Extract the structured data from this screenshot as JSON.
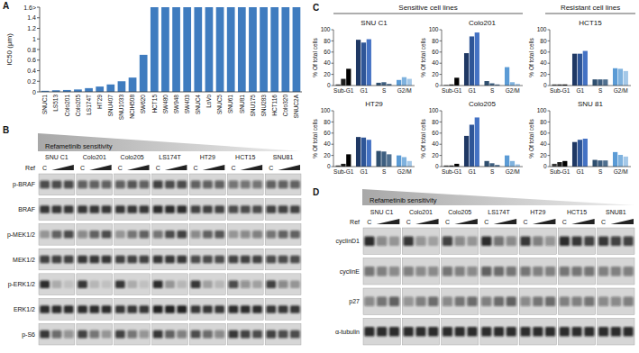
{
  "chart_data": [
    {
      "type": "bar",
      "panel": "A",
      "ylabel": "IC50 (μm)",
      "color": "#3f7cbf",
      "grid": false,
      "categories": [
        "SNUC1",
        "LS513",
        "Colo201",
        "Colo205",
        "LS174T",
        "HT29",
        "SNU407",
        "SNU1033",
        "NCIH508",
        "SW620",
        "HCT15",
        "SW480",
        "SW948",
        "SW403",
        "SNUC4",
        "LoVo",
        "SNUC5",
        "SNU61",
        "SNU81",
        "SNU175",
        "SNU283",
        "HCT116",
        "Colo320",
        "SNUC2A"
      ],
      "values": [
        0.02,
        0.03,
        0.035,
        0.045,
        0.07,
        0.1,
        0.14,
        0.2,
        0.27,
        0.7,
        1.6,
        1.6,
        1.6,
        1.6,
        1.6,
        1.6,
        1.6,
        1.6,
        1.6,
        1.6,
        1.6,
        1.6,
        1.6,
        1.6
      ],
      "ylim": [
        0,
        1.6
      ],
      "yticks": [
        0,
        0.2,
        0.4,
        0.6,
        0.8,
        1,
        1.2,
        1.4,
        {
          "value": 1.6,
          "label": "1.6>"
        }
      ]
    },
    {
      "type": "bar",
      "panel": "C",
      "title": "SNU C1",
      "ylabel": "% Of total cells",
      "categories": [
        "Sub-G1",
        "G1",
        "S",
        "G2/M"
      ],
      "ylim": [
        0,
        100
      ],
      "yticks": [
        0,
        20,
        40,
        60,
        80,
        100
      ],
      "grid": false,
      "series": [
        {
          "colors": [
            "#3a3a3a",
            "#1f3864",
            "#2f4f6f",
            "#5b9bd5"
          ],
          "values": [
            2,
            82,
            5,
            10
          ]
        },
        {
          "colors": [
            "#1e1e1e",
            "#2e5597",
            "#3e5f80",
            "#7fb2de"
          ],
          "values": [
            12,
            77,
            6,
            15
          ]
        },
        {
          "colors": [
            "#000000",
            "#4472c4",
            "#4f6f8f",
            "#a4c8e8"
          ],
          "values": [
            30,
            83,
            3,
            12
          ]
        }
      ]
    },
    {
      "type": "bar",
      "panel": "C",
      "title": "Colo201",
      "ylabel": "% Of total cells",
      "categories": [
        "Sub-G1",
        "G1",
        "S",
        "G2/M"
      ],
      "ylim": [
        0,
        100
      ],
      "yticks": [
        0,
        20,
        40,
        60,
        80,
        100
      ],
      "grid": false,
      "series": [
        {
          "colors": [
            "#3a3a3a",
            "#1f3864",
            "#2f4f6f",
            "#5b9bd5"
          ],
          "values": [
            1,
            58,
            8,
            33
          ]
        },
        {
          "colors": [
            "#1e1e1e",
            "#2e5597",
            "#3e5f80",
            "#7fb2de"
          ],
          "values": [
            2,
            88,
            4,
            6
          ]
        },
        {
          "colors": [
            "#000000",
            "#4472c4",
            "#4f6f8f",
            "#a4c8e8"
          ],
          "values": [
            14,
            95,
            2,
            3
          ]
        }
      ]
    },
    {
      "type": "bar",
      "panel": "C",
      "title": "HCT15",
      "ylabel": "% Of total cells",
      "categories": [
        "Sub-G1",
        "G1",
        "S",
        "G2/M"
      ],
      "ylim": [
        0,
        100
      ],
      "yticks": [
        0,
        20,
        40,
        60,
        80,
        100
      ],
      "grid": false,
      "series": [
        {
          "colors": [
            "#3a3a3a",
            "#1f3864",
            "#2f4f6f",
            "#5b9bd5"
          ],
          "values": [
            2,
            57,
            11,
            31
          ]
        },
        {
          "colors": [
            "#1e1e1e",
            "#2e5597",
            "#3e5f80",
            "#7fb2de"
          ],
          "values": [
            2,
            57,
            11,
            30
          ]
        },
        {
          "colors": [
            "#000000",
            "#4472c4",
            "#4f6f8f",
            "#a4c8e8"
          ],
          "values": [
            2,
            62,
            11,
            26
          ]
        }
      ]
    },
    {
      "type": "bar",
      "panel": "C",
      "title": "HT29",
      "ylabel": "% Of total cells",
      "categories": [
        "Sub-G1",
        "G1",
        "S",
        "G2/M"
      ],
      "ylim": [
        0,
        100
      ],
      "yticks": [
        0,
        20,
        40,
        60,
        80,
        100
      ],
      "grid": false,
      "series": [
        {
          "colors": [
            "#3a3a3a",
            "#1f3864",
            "#2f4f6f",
            "#5b9bd5"
          ],
          "values": [
            2,
            53,
            28,
            20
          ]
        },
        {
          "colors": [
            "#1e1e1e",
            "#2e5597",
            "#3e5f80",
            "#7fb2de"
          ],
          "values": [
            5,
            52,
            27,
            17
          ]
        },
        {
          "colors": [
            "#000000",
            "#4472c4",
            "#4f6f8f",
            "#a4c8e8"
          ],
          "values": [
            22,
            48,
            22,
            10
          ]
        }
      ]
    },
    {
      "type": "bar",
      "panel": "C",
      "title": "Colo205",
      "ylabel": "% Of total cells",
      "categories": [
        "Sub-G1",
        "G1",
        "S",
        "G2/M"
      ],
      "ylim": [
        0,
        100
      ],
      "yticks": [
        0,
        20,
        40,
        60,
        80,
        100
      ],
      "grid": false,
      "series": [
        {
          "colors": [
            "#3a3a3a",
            "#1f3864",
            "#2f4f6f",
            "#5b9bd5"
          ],
          "values": [
            2,
            55,
            10,
            20
          ]
        },
        {
          "colors": [
            "#1e1e1e",
            "#2e5597",
            "#3e5f80",
            "#7fb2de"
          ],
          "values": [
            2,
            75,
            6,
            10
          ]
        },
        {
          "colors": [
            "#000000",
            "#4472c4",
            "#4f6f8f",
            "#a4c8e8"
          ],
          "values": [
            5,
            88,
            3,
            4
          ]
        }
      ]
    },
    {
      "type": "bar",
      "panel": "C",
      "title": "SNU 81",
      "ylabel": "% Of total cells",
      "categories": [
        "Sub-G1",
        "G1",
        "S",
        "G2/M"
      ],
      "ylim": [
        0,
        100
      ],
      "yticks": [
        0,
        20,
        40,
        60,
        80,
        100
      ],
      "grid": false,
      "series": [
        {
          "colors": [
            "#3a3a3a",
            "#1f3864",
            "#2f4f6f",
            "#5b9bd5"
          ],
          "values": [
            5,
            44,
            12,
            26
          ]
        },
        {
          "colors": [
            "#1e1e1e",
            "#2e5597",
            "#3e5f80",
            "#7fb2de"
          ],
          "values": [
            8,
            48,
            11,
            21
          ]
        },
        {
          "colors": [
            "#000000",
            "#4472c4",
            "#4f6f8f",
            "#a4c8e8"
          ],
          "values": [
            10,
            50,
            11,
            18
          ]
        }
      ]
    }
  ],
  "panel_c_groups": [
    {
      "title": "Sensitive cell lines"
    },
    {
      "title": "Resistant cell lines"
    }
  ],
  "blots": [
    {
      "panel": "B",
      "wedge_label": "Refametinib sensitivity",
      "treatment_label": "Ref",
      "control_label": "C",
      "cell_lines": [
        "SNU C1",
        "Colo201",
        "Colo205",
        "LS174T",
        "HT29",
        "HCT15",
        "SNU81"
      ],
      "rows": [
        {
          "label": "p-BRAF",
          "intensity": [
            [
              0.7,
              0.7,
              0.7
            ],
            [
              0.6,
              0.6,
              0.6
            ],
            [
              0.6,
              0.65,
              0.6
            ],
            [
              0.75,
              0.7,
              0.7
            ],
            [
              0.6,
              0.6,
              0.6
            ],
            [
              0.5,
              0.5,
              0.5
            ],
            [
              0.6,
              0.6,
              0.6
            ]
          ]
        },
        {
          "label": "BRAF",
          "intensity": [
            [
              0.8,
              0.8,
              0.8
            ],
            [
              0.8,
              0.8,
              0.8
            ],
            [
              0.8,
              0.8,
              0.8
            ],
            [
              0.85,
              0.85,
              0.85
            ],
            [
              0.75,
              0.75,
              0.75
            ],
            [
              0.7,
              0.7,
              0.7
            ],
            [
              0.75,
              0.75,
              0.75
            ]
          ]
        },
        {
          "label": "p-MEK1/2",
          "intensity": [
            [
              0.3,
              0.6,
              0.7
            ],
            [
              0.4,
              0.6,
              0.7
            ],
            [
              0.3,
              0.5,
              0.6
            ],
            [
              0.5,
              0.7,
              0.75
            ],
            [
              0.4,
              0.6,
              0.65
            ],
            [
              0.3,
              0.4,
              0.45
            ],
            [
              0.5,
              0.6,
              0.6
            ]
          ]
        },
        {
          "label": "MEK1/2",
          "intensity": [
            [
              0.75,
              0.75,
              0.75
            ],
            [
              0.8,
              0.8,
              0.8
            ],
            [
              0.75,
              0.75,
              0.75
            ],
            [
              0.8,
              0.8,
              0.8
            ],
            [
              0.7,
              0.7,
              0.7
            ],
            [
              0.75,
              0.75,
              0.75
            ],
            [
              0.7,
              0.7,
              0.7
            ]
          ]
        },
        {
          "label": "p-ERK1/2",
          "intensity": [
            [
              0.85,
              0.2,
              0.1
            ],
            [
              0.8,
              0.15,
              0.1
            ],
            [
              0.8,
              0.2,
              0.1
            ],
            [
              0.85,
              0.3,
              0.15
            ],
            [
              0.8,
              0.25,
              0.15
            ],
            [
              0.7,
              0.35,
              0.25
            ],
            [
              0.75,
              0.4,
              0.3
            ]
          ]
        },
        {
          "label": "ERK1/2",
          "intensity": [
            [
              0.85,
              0.85,
              0.85
            ],
            [
              0.85,
              0.85,
              0.85
            ],
            [
              0.8,
              0.8,
              0.8
            ],
            [
              0.9,
              0.9,
              0.9
            ],
            [
              0.8,
              0.8,
              0.8
            ],
            [
              0.85,
              0.85,
              0.85
            ],
            [
              0.8,
              0.8,
              0.8
            ]
          ]
        },
        {
          "label": "p-S6",
          "intensity": [
            [
              0.8,
              0.55,
              0.35
            ],
            [
              0.75,
              0.5,
              0.3
            ],
            [
              0.75,
              0.5,
              0.35
            ],
            [
              0.8,
              0.6,
              0.45
            ],
            [
              0.7,
              0.55,
              0.4
            ],
            [
              0.8,
              0.75,
              0.7
            ],
            [
              0.75,
              0.7,
              0.7
            ]
          ]
        }
      ]
    },
    {
      "panel": "D",
      "wedge_label": "Refametinib sensitivity",
      "treatment_label": "Ref",
      "control_label": "C",
      "cell_lines": [
        "SNU C1",
        "Colo201",
        "Colo205",
        "LS174T",
        "HT29",
        "HCT15",
        "SNU81"
      ],
      "rows": [
        {
          "label": "cyclinD1",
          "intensity": [
            [
              0.85,
              0.4,
              0.3
            ],
            [
              0.8,
              0.35,
              0.25
            ],
            [
              0.75,
              0.4,
              0.3
            ],
            [
              0.85,
              0.5,
              0.4
            ],
            [
              0.8,
              0.45,
              0.35
            ],
            [
              0.85,
              0.8,
              0.75
            ],
            [
              0.8,
              0.75,
              0.75
            ]
          ]
        },
        {
          "label": "cyclinE",
          "intensity": [
            [
              0.5,
              0.45,
              0.4
            ],
            [
              0.45,
              0.4,
              0.4
            ],
            [
              0.5,
              0.45,
              0.4
            ],
            [
              0.6,
              0.55,
              0.5
            ],
            [
              0.5,
              0.45,
              0.45
            ],
            [
              0.5,
              0.5,
              0.5
            ],
            [
              0.45,
              0.45,
              0.45
            ]
          ]
        },
        {
          "label": "p27",
          "intensity": [
            [
              0.4,
              0.5,
              0.6
            ],
            [
              0.35,
              0.45,
              0.55
            ],
            [
              0.4,
              0.5,
              0.55
            ],
            [
              0.45,
              0.55,
              0.6
            ],
            [
              0.4,
              0.5,
              0.55
            ],
            [
              0.45,
              0.45,
              0.5
            ],
            [
              0.4,
              0.4,
              0.45
            ]
          ]
        },
        {
          "label": "α-tubulin",
          "intensity": [
            [
              0.85,
              0.85,
              0.85
            ],
            [
              0.85,
              0.85,
              0.85
            ],
            [
              0.85,
              0.85,
              0.85
            ],
            [
              0.85,
              0.85,
              0.85
            ],
            [
              0.85,
              0.85,
              0.85
            ],
            [
              0.85,
              0.85,
              0.85
            ],
            [
              0.85,
              0.85,
              0.85
            ]
          ]
        }
      ]
    }
  ]
}
